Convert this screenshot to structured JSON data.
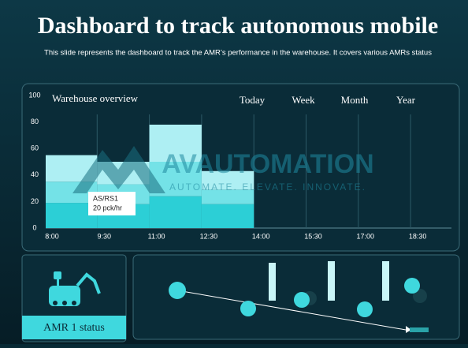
{
  "header": {
    "title": "Dashboard to track autonomous mobile",
    "subtitle": "This slide represents the dashboard to track the AMR’s performance in the warehouse. It covers various AMRs status"
  },
  "chart_data": {
    "type": "bar",
    "stacked": true,
    "title": "Warehouse overview",
    "tabs": [
      "Today",
      "Week",
      "Month",
      "Year"
    ],
    "categories": [
      "8:00",
      "9:30",
      "11:00",
      "12:30",
      "14:00",
      "15:30",
      "17:00",
      "18:30"
    ],
    "series": [
      {
        "color": "#2ccfd6",
        "values": [
          19,
          18,
          24,
          18,
          null,
          null,
          null,
          null
        ]
      },
      {
        "color": "#74e2e7",
        "values": [
          16,
          15,
          26,
          11,
          null,
          null,
          null,
          null
        ]
      },
      {
        "color": "#aeeff3",
        "values": [
          20,
          17,
          28,
          14,
          null,
          null,
          null,
          null
        ]
      }
    ],
    "ylim": [
      0,
      100
    ],
    "yticks": [
      0,
      20,
      40,
      60,
      80,
      100
    ],
    "grid": true,
    "tooltip": {
      "title": "AS/RS1",
      "text": "20 pck/hr"
    }
  },
  "watermark": {
    "brand": "AVAUTOMATION",
    "tagline": "AUTOMATE. ELEVATE. INNOVATE."
  },
  "status_panel": {
    "label": "AMR 1 status"
  }
}
